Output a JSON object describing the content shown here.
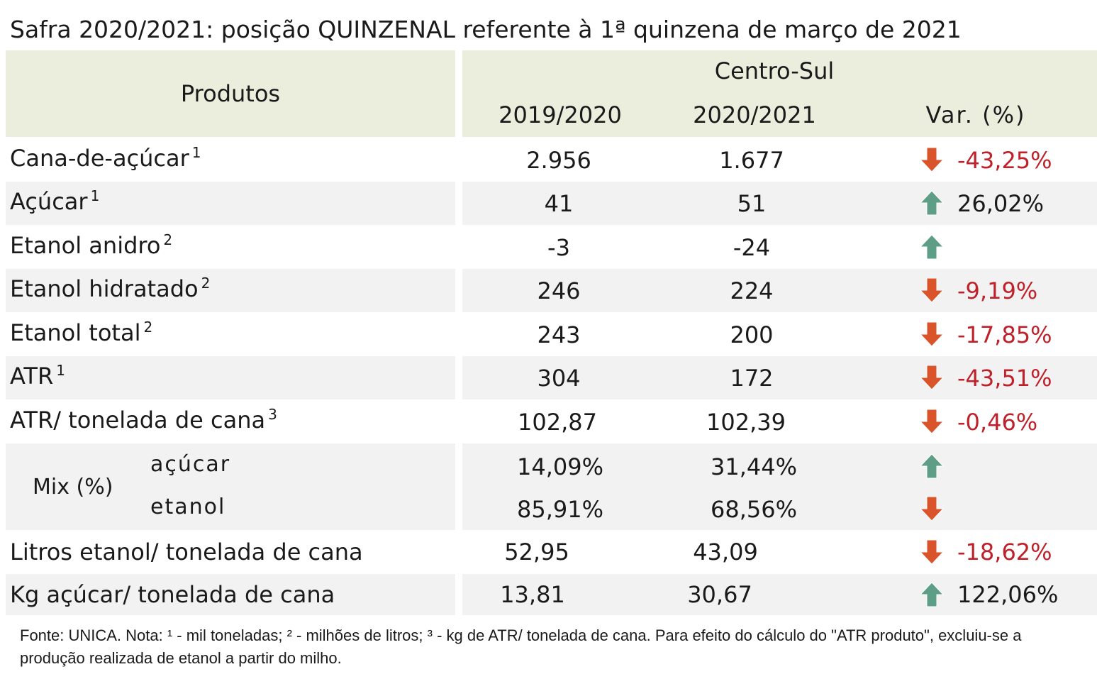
{
  "title": "Safra 2020/2021: posição QUINZENAL referente à 1ª quinzena de março de 2021",
  "header": {
    "products_label": "Produtos",
    "region": "Centro-Sul",
    "col_prev": "2019/2020",
    "col_curr": "2020/2021",
    "col_var": "Var. (%)"
  },
  "rows": [
    {
      "label": "Cana-de-açúcar",
      "note": "1",
      "prev": "2.956",
      "curr": "1.677",
      "trend": "down",
      "var": "-43,25%"
    },
    {
      "label": "Açúcar",
      "note": "1",
      "prev": "41",
      "curr": "51",
      "trend": "up",
      "var": "26,02%"
    },
    {
      "label": "Etanol anidro",
      "note": "2",
      "prev": "-3",
      "curr": "-24",
      "trend": "up",
      "var": ""
    },
    {
      "label": "Etanol hidratado",
      "note": "2",
      "prev": "246",
      "curr": "224",
      "trend": "down",
      "var": "-9,19%"
    },
    {
      "label": "Etanol total",
      "note": "2",
      "prev": "243",
      "curr": "200",
      "trend": "down",
      "var": "-17,85%"
    },
    {
      "label": "ATR",
      "note": "1",
      "prev": "304",
      "curr": "172",
      "trend": "down",
      "var": "-43,51%"
    },
    {
      "label": "ATR/ tonelada de cana",
      "note": "3",
      "prev": "102,87",
      "curr": "102,39",
      "trend": "down",
      "var": "-0,46%"
    }
  ],
  "mix": {
    "label": "Mix (%)",
    "sugar": {
      "label": "açúcar",
      "prev": "14,09%",
      "curr": "31,44%",
      "trend": "up"
    },
    "ethanol": {
      "label": "etanol",
      "prev": "85,91%",
      "curr": "68,56%",
      "trend": "down"
    }
  },
  "rows_bottom": [
    {
      "label": "Litros etanol/ tonelada de cana",
      "prev": "52,95",
      "curr": "43,09",
      "trend": "down",
      "var": "-18,62%"
    },
    {
      "label": "Kg açúcar/ tonelada de cana",
      "prev": "13,81",
      "curr": "30,67",
      "trend": "up",
      "var": "122,06%"
    }
  ],
  "colors": {
    "up_arrow": "#5f9e86",
    "down_arrow": "#d9542b",
    "negative_text": "#c0202a",
    "header_bg": "#ebeedd",
    "shade_bg": "#f2f2f2"
  },
  "footnote": "Fonte: UNICA. Nota: ¹ - mil toneladas; ² - milhões de litros; ³ - kg de ATR/ tonelada de cana. Para efeito do cálculo do \"ATR produto\", excluiu-se a produção realizada de etanol a partir do milho."
}
